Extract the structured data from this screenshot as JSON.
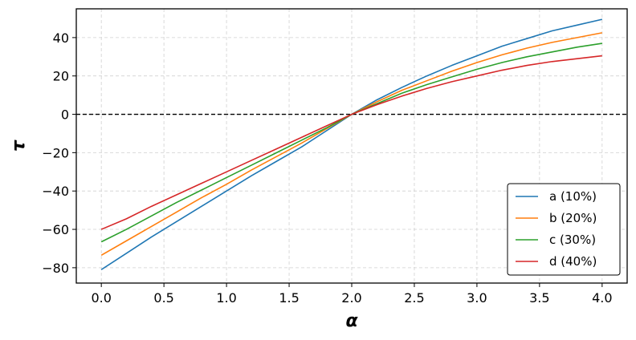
{
  "chart_data": {
    "type": "line",
    "title": "",
    "xlabel": "α",
    "ylabel": "τ",
    "xlim": [
      -0.2,
      4.2
    ],
    "ylim": [
      -88,
      55
    ],
    "xticks": [
      0.0,
      0.5,
      1.0,
      1.5,
      2.0,
      2.5,
      3.0,
      3.5,
      4.0
    ],
    "xtick_labels": [
      "0.0",
      "0.5",
      "1.0",
      "1.5",
      "2.0",
      "2.5",
      "3.0",
      "3.5",
      "4.0"
    ],
    "yticks": [
      -80,
      -60,
      -40,
      -20,
      0,
      20,
      40
    ],
    "ytick_labels": [
      "−80",
      "−60",
      "−40",
      "−20",
      "0",
      "20",
      "40"
    ],
    "grid": true,
    "grid_style": "dashed",
    "reference_line": {
      "y": 0,
      "style": "dashed",
      "color": "#000000"
    },
    "legend_position": "lower-right",
    "x": [
      0.0,
      0.2,
      0.4,
      0.6,
      0.8,
      1.0,
      1.2,
      1.4,
      1.6,
      1.8,
      2.0,
      2.2,
      2.4,
      2.6,
      2.8,
      3.0,
      3.2,
      3.4,
      3.6,
      3.8,
      4.0
    ],
    "series": [
      {
        "name": "a (10%)",
        "color": "#1f77b4",
        "values": [
          -81,
          -72.5,
          -64,
          -56,
          -48,
          -40,
          -32,
          -24.5,
          -17,
          -8.5,
          0,
          7.5,
          14,
          20,
          25.5,
          30.5,
          35.5,
          39.5,
          43.5,
          46.5,
          49.5
        ]
      },
      {
        "name": "b (20%)",
        "color": "#ff7f0e",
        "values": [
          -73.5,
          -66,
          -58.5,
          -51,
          -43.5,
          -36.5,
          -29,
          -22,
          -15,
          -7.5,
          0,
          6.5,
          12.5,
          17.5,
          22.5,
          27,
          31,
          34.5,
          37.5,
          40,
          42.5
        ]
      },
      {
        "name": "c (30%)",
        "color": "#2ca02c",
        "values": [
          -66.5,
          -60,
          -53,
          -46,
          -39.5,
          -33,
          -26.5,
          -20,
          -13.5,
          -7,
          0,
          5.5,
          11,
          15.5,
          19.5,
          23.5,
          27,
          30,
          32.5,
          35,
          37
        ]
      },
      {
        "name": "d (40%)",
        "color": "#d62728",
        "values": [
          -60,
          -54.5,
          -48,
          -42,
          -36,
          -30,
          -24,
          -18,
          -12,
          -6,
          0,
          5,
          9.5,
          13.5,
          17,
          20,
          23,
          25.5,
          27.5,
          29,
          30.5
        ]
      }
    ]
  }
}
